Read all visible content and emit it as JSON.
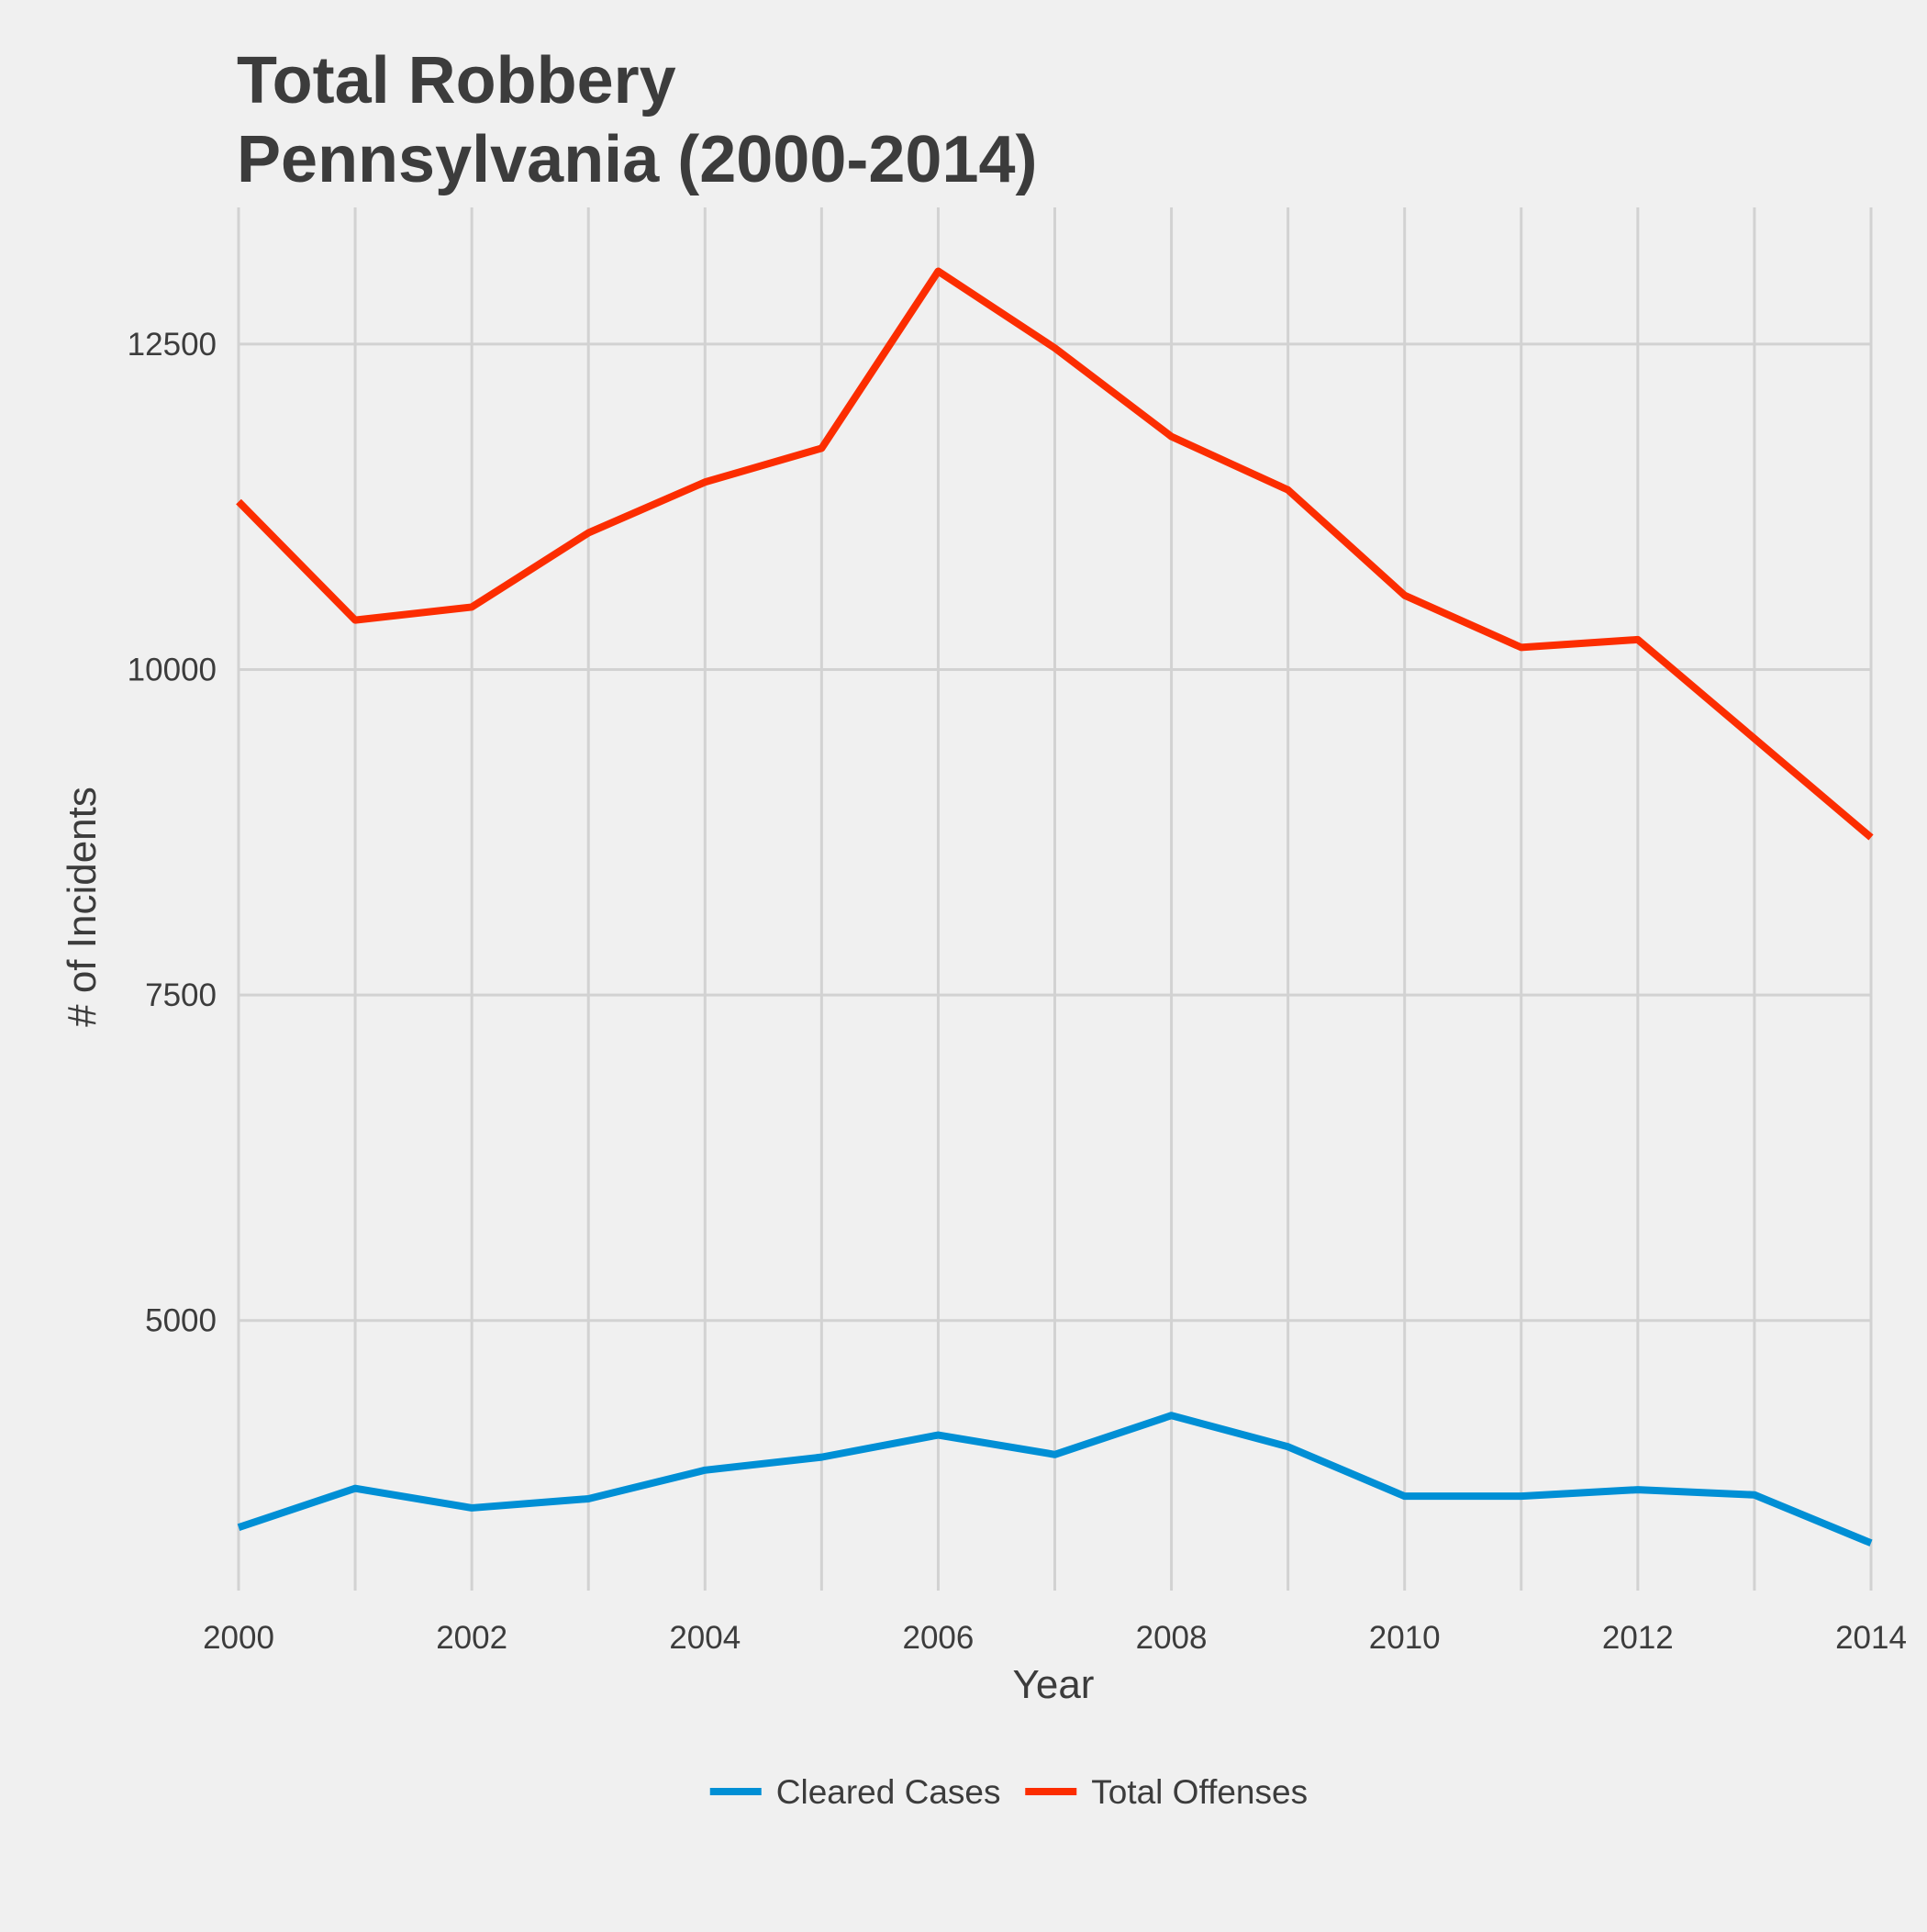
{
  "chart_data": {
    "type": "line",
    "title": [
      "Total Robbery",
      "Pennsylvania (2000-2014)"
    ],
    "xlabel": "Year",
    "ylabel": "# of Incidents",
    "x": [
      2000,
      2001,
      2002,
      2003,
      2004,
      2005,
      2006,
      2007,
      2008,
      2009,
      2010,
      2011,
      2012,
      2013,
      2014
    ],
    "xlim": [
      2000,
      2014
    ],
    "ylim": [
      2925,
      13550
    ],
    "x_ticks": [
      2000,
      2002,
      2004,
      2006,
      2008,
      2010,
      2012,
      2014
    ],
    "y_ticks": [
      5000,
      7500,
      10000,
      12500
    ],
    "grid": true,
    "legend_position": "bottom",
    "series": [
      {
        "name": "Cleared Cases",
        "color": "#008fd5",
        "values": [
          3410,
          3710,
          3560,
          3630,
          3850,
          3950,
          4120,
          3970,
          4270,
          4030,
          3650,
          3650,
          3700,
          3660,
          3290
        ]
      },
      {
        "name": "Total Offenses",
        "color": "#fc2d00",
        "values": [
          11290,
          10380,
          10480,
          11050,
          11440,
          11700,
          13060,
          12470,
          11790,
          11380,
          10570,
          10170,
          10230,
          9470,
          8710
        ]
      }
    ]
  }
}
